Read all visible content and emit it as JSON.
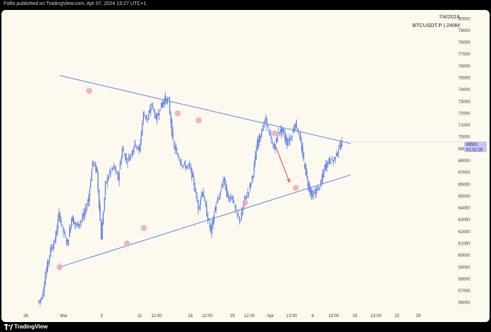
{
  "header": {
    "text": "Follis published on TradingView.com, Apr 07, 2024 19:27 UTC+1"
  },
  "footer": {
    "brand": "TradingView"
  },
  "chart_info": {
    "date": "7/4/2024",
    "symbol": "BTCUSDT.P | 240M"
  },
  "price_tag": {
    "price": "69581",
    "countdown": "01:32:28"
  },
  "colors": {
    "candle": "#4a74e0",
    "trendline": "#6a8ef0",
    "marker": "#f4a3b5",
    "arrow": "#e0434d",
    "tag_bg": "#c9c5f6"
  },
  "chart_data": {
    "type": "candlestick",
    "ylim": [
      55500,
      80500
    ],
    "y_ticks": [
      56000,
      57000,
      58000,
      59000,
      60000,
      61000,
      62000,
      63000,
      64000,
      65000,
      66000,
      67000,
      68000,
      69000,
      70000,
      71000,
      72000,
      73000,
      74000,
      75000,
      76000,
      77000,
      78000,
      79000,
      80000
    ],
    "x_ticks": [
      "26",
      "Mar",
      "5",
      "11",
      "12:00",
      "18",
      "12:00",
      "25",
      "12:00",
      "Apr",
      "13:00",
      "8",
      "13:00",
      "15",
      "13:00",
      "22",
      "29"
    ],
    "x_tick_index": [
      -3,
      6,
      15,
      24,
      28,
      36,
      40,
      46,
      50,
      55,
      60,
      65,
      70,
      75,
      80,
      85,
      90
    ],
    "last_price": 69581,
    "price_path": [
      [
        0,
        56000
      ],
      [
        1,
        56500
      ],
      [
        2,
        58800
      ],
      [
        3,
        60500
      ],
      [
        4,
        61200
      ],
      [
        5,
        63500
      ],
      [
        6,
        62000
      ],
      [
        7,
        61000
      ],
      [
        8,
        63200
      ],
      [
        9,
        62500
      ],
      [
        10,
        62800
      ],
      [
        11,
        63500
      ],
      [
        12,
        64800
      ],
      [
        13,
        68000
      ],
      [
        14,
        67000
      ],
      [
        15,
        61500
      ],
      [
        16,
        66000
      ],
      [
        17,
        67000
      ],
      [
        18,
        67500
      ],
      [
        19,
        66500
      ],
      [
        20,
        69000
      ],
      [
        21,
        68000
      ],
      [
        22,
        68500
      ],
      [
        23,
        69500
      ],
      [
        24,
        68800
      ],
      [
        25,
        72000
      ],
      [
        26,
        71500
      ],
      [
        27,
        72800
      ],
      [
        28,
        71500
      ],
      [
        29,
        72500
      ],
      [
        30,
        73200
      ],
      [
        31,
        73000
      ],
      [
        32,
        69500
      ],
      [
        33,
        68500
      ],
      [
        34,
        67800
      ],
      [
        35,
        67500
      ],
      [
        36,
        67500
      ],
      [
        37,
        66000
      ],
      [
        38,
        64000
      ],
      [
        39,
        65500
      ],
      [
        40,
        63500
      ],
      [
        41,
        62000
      ],
      [
        42,
        64000
      ],
      [
        43,
        65000
      ],
      [
        44,
        66500
      ],
      [
        45,
        64800
      ],
      [
        46,
        65000
      ],
      [
        47,
        63500
      ],
      [
        48,
        63000
      ],
      [
        49,
        64800
      ],
      [
        50,
        65500
      ],
      [
        51,
        67000
      ],
      [
        52,
        69500
      ],
      [
        53,
        70500
      ],
      [
        54,
        71500
      ],
      [
        55,
        70000
      ],
      [
        56,
        69000
      ],
      [
        57,
        70500
      ],
      [
        58,
        70500
      ],
      [
        59,
        69500
      ],
      [
        60,
        70000
      ],
      [
        61,
        71200
      ],
      [
        62,
        70000
      ],
      [
        63,
        68000
      ],
      [
        64,
        66000
      ],
      [
        65,
        65000
      ],
      [
        66,
        65500
      ],
      [
        67,
        66000
      ],
      [
        68,
        67500
      ],
      [
        69,
        68000
      ],
      [
        70,
        68000
      ],
      [
        71,
        68800
      ],
      [
        72,
        69581
      ]
    ],
    "trendlines": [
      {
        "name": "resistance",
        "from": [
          5,
          75200
        ],
        "to": [
          74,
          69450
        ]
      },
      {
        "name": "support",
        "from": [
          5,
          59000
        ],
        "to": [
          74,
          66800
        ]
      }
    ],
    "touch_points": [
      [
        5,
        59000
      ],
      [
        12,
        73900
      ],
      [
        21,
        61000
      ],
      [
        25,
        62300
      ],
      [
        33,
        72000
      ],
      [
        38,
        71400
      ],
      [
        49,
        64450
      ],
      [
        56,
        70300
      ],
      [
        61,
        65700
      ]
    ],
    "projection_arrow": {
      "from": [
        56,
        69400
      ],
      "to": [
        59.5,
        66200
      ]
    }
  }
}
